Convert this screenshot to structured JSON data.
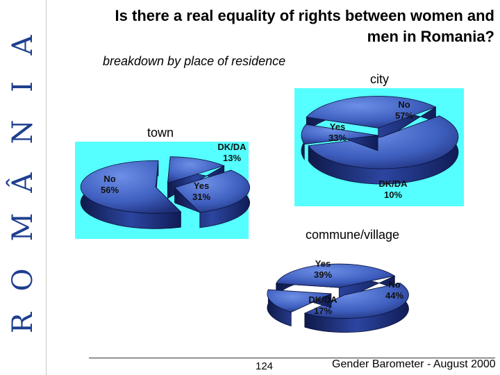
{
  "header": {
    "title_line1": "Is there a real equality of rights between women and",
    "title_line2": "men in Romania?",
    "subtitle": "breakdown by place of residence"
  },
  "sidebar": {
    "letters": [
      "R",
      "O",
      "M",
      "Â",
      "N",
      "I",
      "A"
    ]
  },
  "footer": {
    "page_number": "124",
    "source": "Gender Barometer - August 2000"
  },
  "colors": {
    "panel_bg": "#55ffff",
    "slice_light": "#5b7fd9",
    "slice_dark": "#1a2a6b",
    "side_text": "#1e3f8f"
  },
  "chart_data": [
    {
      "type": "pie",
      "label": "city",
      "slices": [
        {
          "label": "Yes",
          "value": 33,
          "text": "33%"
        },
        {
          "label": "No",
          "value": 57,
          "text": "57%"
        },
        {
          "label": "DK/DA",
          "value": 10,
          "text": "10%"
        }
      ]
    },
    {
      "type": "pie",
      "label": "town",
      "slices": [
        {
          "label": "DK/DA",
          "value": 13,
          "text": "13%"
        },
        {
          "label": "Yes",
          "value": 31,
          "text": "31%"
        },
        {
          "label": "No",
          "value": 56,
          "text": "56%"
        }
      ]
    },
    {
      "type": "pie",
      "label": "commune/village",
      "slices": [
        {
          "label": "Yes",
          "value": 39,
          "text": "39%"
        },
        {
          "label": "No",
          "value": 44,
          "text": "44%"
        },
        {
          "label": "DK/DA",
          "value": 17,
          "text": "17%"
        }
      ]
    }
  ]
}
